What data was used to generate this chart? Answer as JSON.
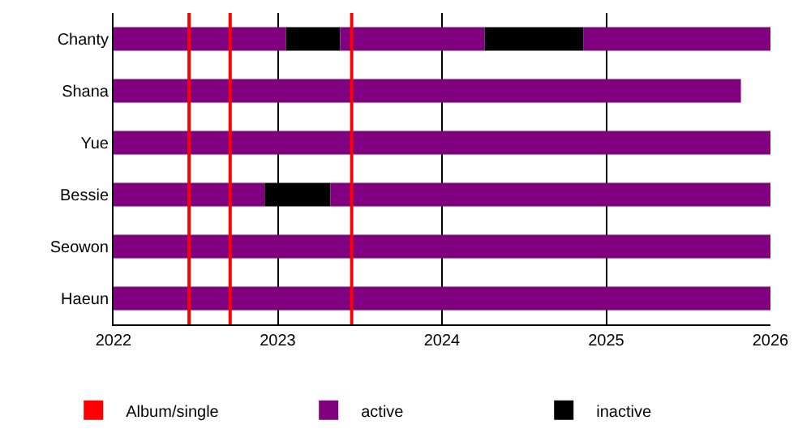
{
  "chart_data": {
    "type": "bar",
    "orientation": "horizontal",
    "categories": [
      "Chanty",
      "Shana",
      "Yue",
      "Bessie",
      "Seowon",
      "Haeun"
    ],
    "series": [
      {
        "name": "active",
        "color": "#800080",
        "base": [
          2022,
          2022,
          2022,
          2022,
          2022,
          2022
        ],
        "values": [
          1.05,
          3.82,
          4,
          0.92,
          4,
          4
        ]
      },
      {
        "name": "inactive",
        "color": "#000000",
        "base": [
          2023.05,
          null,
          null,
          2022.92,
          null,
          null
        ],
        "values": [
          0.33,
          null,
          null,
          0.4,
          null,
          null
        ]
      },
      {
        "color": "#800080",
        "base": [
          2023.38,
          null,
          null,
          2023.32,
          null,
          null
        ],
        "values": [
          0.88,
          null,
          null,
          2.68,
          null,
          null
        ]
      },
      {
        "color": "#000000",
        "base": [
          2024.26,
          null,
          null,
          null,
          null,
          null
        ],
        "values": [
          0.6,
          null,
          null,
          null,
          null,
          null
        ]
      },
      {
        "color": "#800080",
        "base": [
          2024.86,
          null,
          null,
          null,
          null,
          null
        ],
        "values": [
          1.14,
          null,
          null,
          null,
          null,
          null
        ]
      }
    ],
    "xlim": [
      2022,
      2026
    ],
    "xticks": [
      2022,
      2023,
      2024,
      2025,
      2026
    ],
    "ref_lines": [
      {
        "axis": "x",
        "value": 2022.46,
        "label": "Album/single",
        "color": "#ff0000"
      },
      {
        "axis": "x",
        "value": 2022.71,
        "color": "#ff0000"
      },
      {
        "axis": "x",
        "value": 2023.45,
        "color": "#ff0000"
      }
    ],
    "grid": "x",
    "legend": "bottom"
  }
}
